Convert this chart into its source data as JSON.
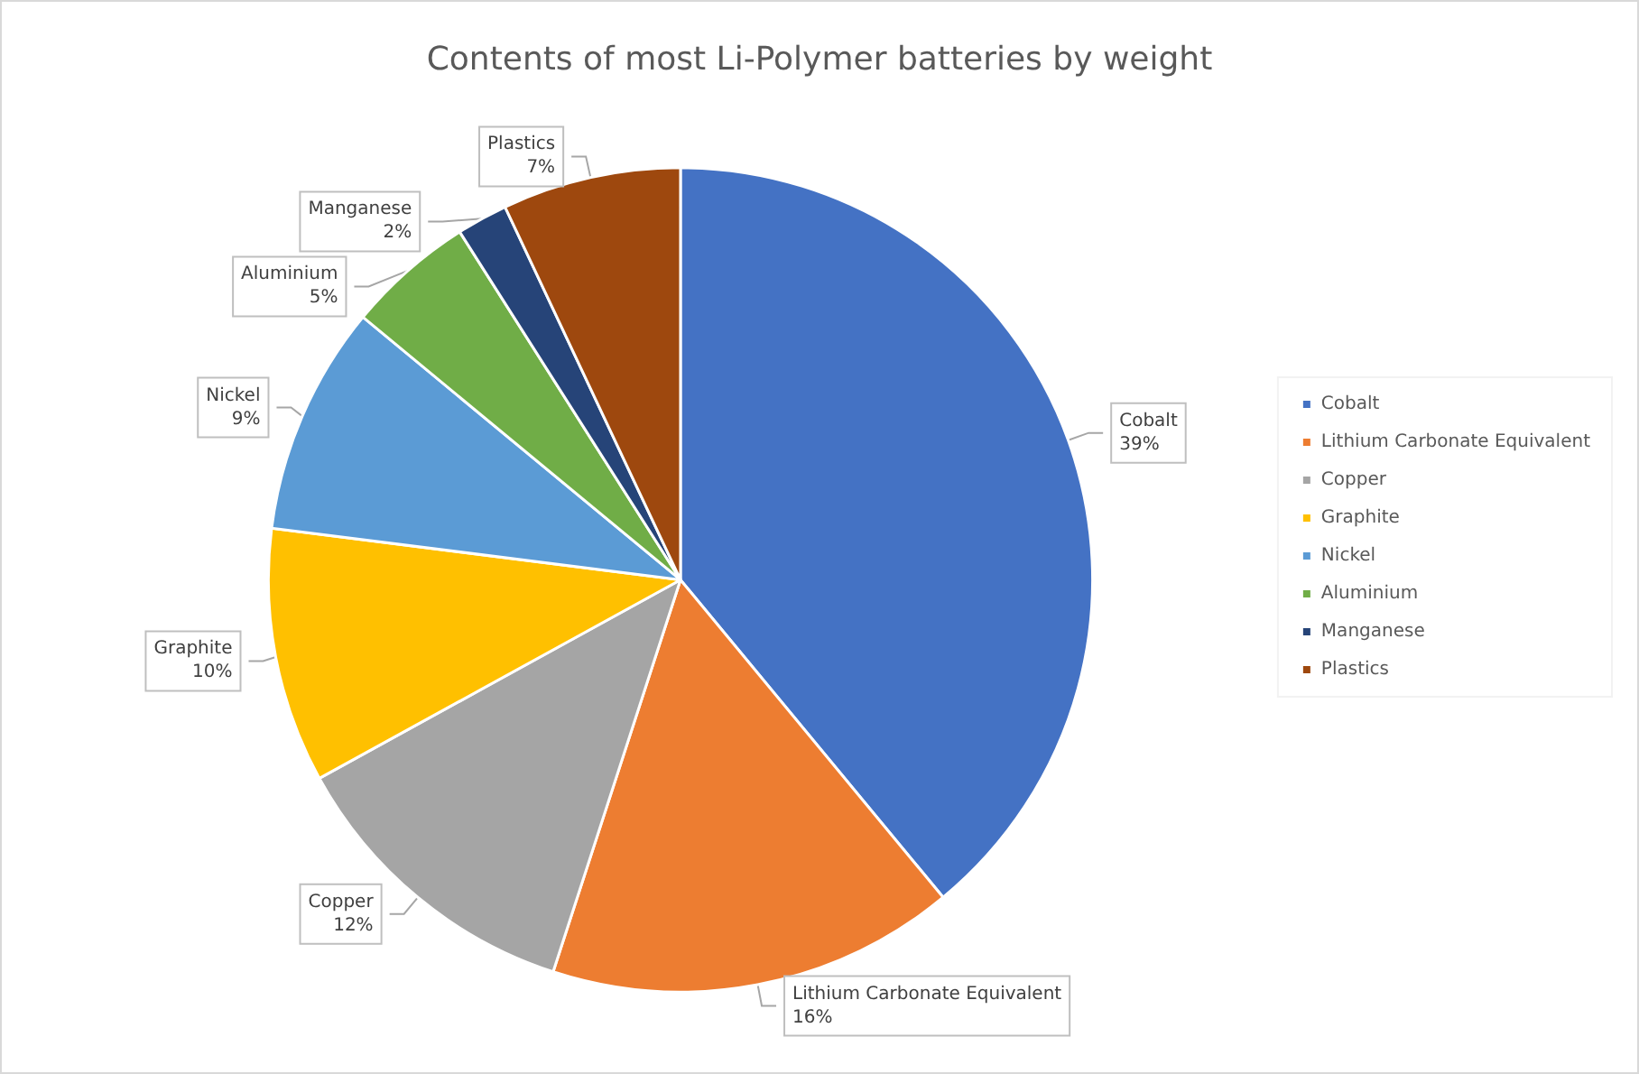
{
  "chart_data": {
    "type": "pie",
    "title": "Contents of most Li-Polymer batteries by weight",
    "categories": [
      "Cobalt",
      "Lithium Carbonate Equivalent",
      "Copper",
      "Graphite",
      "Nickel",
      "Aluminium",
      "Manganese",
      "Plastics"
    ],
    "values": [
      39,
      16,
      12,
      10,
      9,
      5,
      2,
      7
    ],
    "colors": [
      "#4472c4",
      "#ed7d31",
      "#a5a5a5",
      "#ffc000",
      "#5b9bd5",
      "#70ad47",
      "#264478",
      "#9e480e"
    ],
    "value_labels": [
      "39%",
      "16%",
      "12%",
      "10%",
      "9%",
      "5%",
      "2%",
      "7%"
    ],
    "legend": "right"
  }
}
